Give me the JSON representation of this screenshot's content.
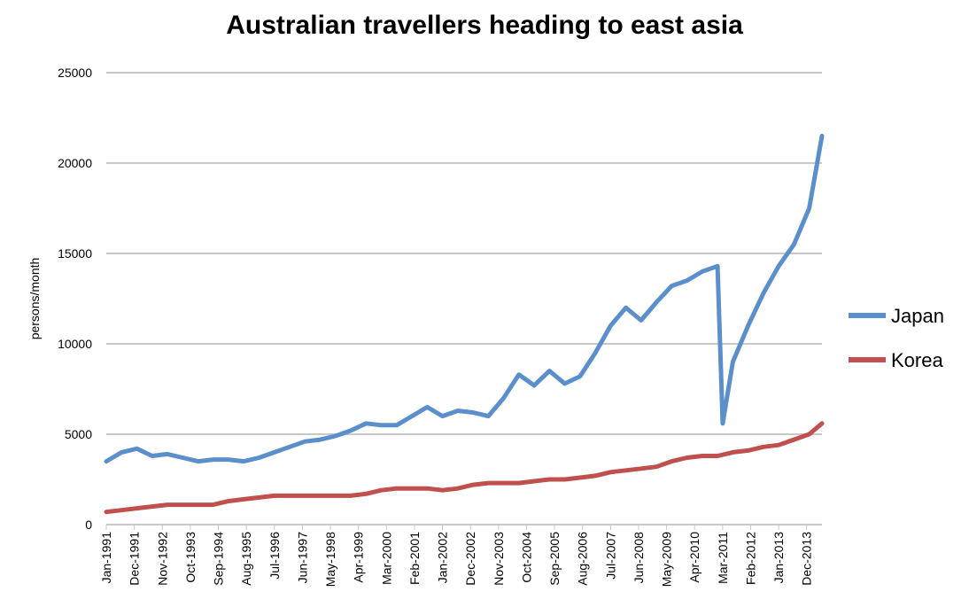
{
  "chart_data": {
    "type": "line",
    "title": "Australian travellers heading to east asia",
    "ylabel": "persons/month",
    "xlabel": "",
    "ylim": [
      0,
      25000
    ],
    "yticks": [
      0,
      5000,
      10000,
      15000,
      20000,
      25000
    ],
    "grid": true,
    "legend": "right",
    "x_tick_labels": [
      "Jan-1991",
      "Dec-1991",
      "Nov-1992",
      "Oct-1993",
      "Sep-1994",
      "Aug-1995",
      "Jul-1996",
      "Jun-1997",
      "May-1998",
      "Apr-1999",
      "Mar-2000",
      "Feb-2001",
      "Jan-2002",
      "Dec-2002",
      "Nov-2003",
      "Oct-2004",
      "Sep-2005",
      "Aug-2006",
      "Jul-2007",
      "Jun-2008",
      "May-2009",
      "Apr-2010",
      "Mar-2011",
      "Feb-2012",
      "Jan-2013",
      "Dec-2013"
    ],
    "x_start": "Jan-1991",
    "x_end": "Jun-2014",
    "series": [
      {
        "name": "Japan",
        "color": "#5b8fcc",
        "points": [
          [
            "Jan-1991",
            3500
          ],
          [
            "Jul-1991",
            4000
          ],
          [
            "Jan-1992",
            4200
          ],
          [
            "Jul-1992",
            3800
          ],
          [
            "Jan-1993",
            3900
          ],
          [
            "Jul-1993",
            3700
          ],
          [
            "Jan-1994",
            3500
          ],
          [
            "Jul-1994",
            3600
          ],
          [
            "Jan-1995",
            3600
          ],
          [
            "Jul-1995",
            3500
          ],
          [
            "Jan-1996",
            3700
          ],
          [
            "Jul-1996",
            4000
          ],
          [
            "Jan-1997",
            4300
          ],
          [
            "Jul-1997",
            4600
          ],
          [
            "Jan-1998",
            4700
          ],
          [
            "Jul-1998",
            4900
          ],
          [
            "Jan-1999",
            5200
          ],
          [
            "Jul-1999",
            5600
          ],
          [
            "Jan-2000",
            5500
          ],
          [
            "Jul-2000",
            5500
          ],
          [
            "Jan-2001",
            6000
          ],
          [
            "Jul-2001",
            6500
          ],
          [
            "Jan-2002",
            6000
          ],
          [
            "Jul-2002",
            6300
          ],
          [
            "Jan-2003",
            6200
          ],
          [
            "Jul-2003",
            6000
          ],
          [
            "Jan-2004",
            7000
          ],
          [
            "Jul-2004",
            8300
          ],
          [
            "Jan-2005",
            7700
          ],
          [
            "Jul-2005",
            8500
          ],
          [
            "Jan-2006",
            7800
          ],
          [
            "Jul-2006",
            8200
          ],
          [
            "Jan-2007",
            9500
          ],
          [
            "Jul-2007",
            11000
          ],
          [
            "Jan-2008",
            12000
          ],
          [
            "Jul-2008",
            11300
          ],
          [
            "Jan-2009",
            12300
          ],
          [
            "Jul-2009",
            13200
          ],
          [
            "Jan-2010",
            13500
          ],
          [
            "Jul-2010",
            14000
          ],
          [
            "Jan-2011",
            14300
          ],
          [
            "Mar-2011",
            5600
          ],
          [
            "Jul-2011",
            9000
          ],
          [
            "Jan-2012",
            11000
          ],
          [
            "Jul-2012",
            12800
          ],
          [
            "Jan-2013",
            14300
          ],
          [
            "Jul-2013",
            15500
          ],
          [
            "Jan-2014",
            17500
          ],
          [
            "Jun-2014",
            21500
          ]
        ]
      },
      {
        "name": "Korea",
        "color": "#c0504d",
        "points": [
          [
            "Jan-1991",
            700
          ],
          [
            "Jul-1991",
            800
          ],
          [
            "Jan-1992",
            900
          ],
          [
            "Jul-1992",
            1000
          ],
          [
            "Jan-1993",
            1100
          ],
          [
            "Jul-1993",
            1100
          ],
          [
            "Jan-1994",
            1100
          ],
          [
            "Jul-1994",
            1100
          ],
          [
            "Jan-1995",
            1300
          ],
          [
            "Jul-1995",
            1400
          ],
          [
            "Jan-1996",
            1500
          ],
          [
            "Jul-1996",
            1600
          ],
          [
            "Jan-1997",
            1600
          ],
          [
            "Jul-1997",
            1600
          ],
          [
            "Jan-1998",
            1600
          ],
          [
            "Jul-1998",
            1600
          ],
          [
            "Jan-1999",
            1600
          ],
          [
            "Jul-1999",
            1700
          ],
          [
            "Jan-2000",
            1900
          ],
          [
            "Jul-2000",
            2000
          ],
          [
            "Jan-2001",
            2000
          ],
          [
            "Jul-2001",
            2000
          ],
          [
            "Jan-2002",
            1900
          ],
          [
            "Jul-2002",
            2000
          ],
          [
            "Jan-2003",
            2200
          ],
          [
            "Jul-2003",
            2300
          ],
          [
            "Jan-2004",
            2300
          ],
          [
            "Jul-2004",
            2300
          ],
          [
            "Jan-2005",
            2400
          ],
          [
            "Jul-2005",
            2500
          ],
          [
            "Jan-2006",
            2500
          ],
          [
            "Jul-2006",
            2600
          ],
          [
            "Jan-2007",
            2700
          ],
          [
            "Jul-2007",
            2900
          ],
          [
            "Jan-2008",
            3000
          ],
          [
            "Jul-2008",
            3100
          ],
          [
            "Jan-2009",
            3200
          ],
          [
            "Jul-2009",
            3500
          ],
          [
            "Jan-2010",
            3700
          ],
          [
            "Jul-2010",
            3800
          ],
          [
            "Jan-2011",
            3800
          ],
          [
            "Jul-2011",
            4000
          ],
          [
            "Jan-2012",
            4100
          ],
          [
            "Jul-2012",
            4300
          ],
          [
            "Jan-2013",
            4400
          ],
          [
            "Jul-2013",
            4700
          ],
          [
            "Jan-2014",
            5000
          ],
          [
            "Jun-2014",
            5600
          ]
        ]
      }
    ]
  }
}
